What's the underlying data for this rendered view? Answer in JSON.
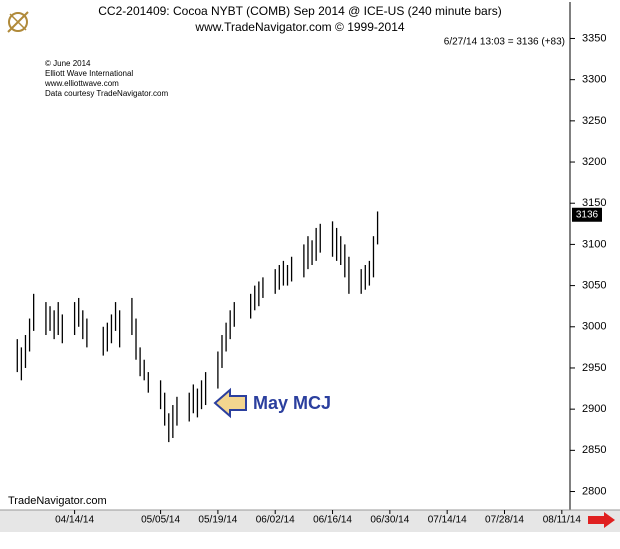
{
  "chart_data": {
    "type": "ohlc",
    "title": "CC2-201409:  Cocoa NYBT (COMB) Sep 2014 @ ICE-US  (240 minute bars)",
    "subtitle": "www.TradeNavigator.com © 1999-2014",
    "credits": [
      "© June 2014",
      "Elliott Wave International",
      "www.elliottwave.com",
      "Data courtesy TradeNavigator.com"
    ],
    "last_note": "6/27/14 13:03 = 3136 (+83)",
    "last_price": 3136,
    "annotation": "May MCJ",
    "watermark": "TradeNavigator.com",
    "color": "#000000",
    "x": [
      "03/31/14",
      "04/01/14",
      "04/02/14",
      "04/03/14",
      "04/04/14",
      "04/07/14",
      "04/08/14",
      "04/09/14",
      "04/10/14",
      "04/11/14",
      "04/14/14",
      "04/15/14",
      "04/16/14",
      "04/17/14",
      "04/21/14",
      "04/22/14",
      "04/23/14",
      "04/24/14",
      "04/25/14",
      "04/28/14",
      "04/29/14",
      "04/30/14",
      "05/01/14",
      "05/02/14",
      "05/05/14",
      "05/06/14",
      "05/07/14",
      "05/08/14",
      "05/09/14",
      "05/12/14",
      "05/13/14",
      "05/14/14",
      "05/15/14",
      "05/16/14",
      "05/19/14",
      "05/20/14",
      "05/21/14",
      "05/22/14",
      "05/23/14",
      "05/27/14",
      "05/28/14",
      "05/29/14",
      "05/30/14",
      "06/02/14",
      "06/03/14",
      "06/04/14",
      "06/05/14",
      "06/06/14",
      "06/09/14",
      "06/10/14",
      "06/11/14",
      "06/12/14",
      "06/13/14",
      "06/16/14",
      "06/17/14",
      "06/18/14",
      "06/19/14",
      "06/20/14",
      "06/23/14",
      "06/24/14",
      "06/25/14",
      "06/26/14",
      "06/27/14"
    ],
    "high": [
      2985,
      2975,
      2990,
      3010,
      3040,
      3030,
      3025,
      3020,
      3030,
      3015,
      3030,
      3035,
      3020,
      3010,
      3000,
      3005,
      3015,
      3030,
      3020,
      3035,
      3010,
      2975,
      2960,
      2945,
      2935,
      2920,
      2895,
      2905,
      2915,
      2920,
      2930,
      2925,
      2935,
      2945,
      2970,
      2990,
      3005,
      3020,
      3030,
      3040,
      3050,
      3055,
      3060,
      3070,
      3075,
      3080,
      3075,
      3085,
      3100,
      3110,
      3105,
      3120,
      3125,
      3128,
      3120,
      3110,
      3100,
      3085,
      3070,
      3075,
      3080,
      3110,
      3140
    ],
    "low": [
      2945,
      2935,
      2950,
      2970,
      2995,
      2990,
      2995,
      2985,
      2990,
      2980,
      2990,
      3000,
      2985,
      2975,
      2965,
      2970,
      2980,
      2995,
      2975,
      2990,
      2960,
      2940,
      2935,
      2920,
      2900,
      2880,
      2860,
      2865,
      2880,
      2885,
      2895,
      2890,
      2900,
      2905,
      2925,
      2950,
      2970,
      2985,
      3000,
      3010,
      3020,
      3025,
      3035,
      3040,
      3045,
      3050,
      3050,
      3055,
      3060,
      3070,
      3075,
      3080,
      3090,
      3085,
      3080,
      3075,
      3060,
      3040,
      3040,
      3045,
      3050,
      3060,
      3100
    ],
    "xlim": [
      "03/28/14",
      "08/13/14"
    ],
    "xticks": [
      "04/14/14",
      "05/05/14",
      "05/19/14",
      "06/02/14",
      "06/16/14",
      "06/30/14",
      "07/14/14",
      "07/28/14",
      "08/11/14"
    ],
    "ylim": [
      2780,
      3370
    ],
    "yticks": [
      2800,
      2850,
      2900,
      2950,
      3000,
      3050,
      3100,
      3150,
      3200,
      3250,
      3300,
      3350
    ]
  }
}
